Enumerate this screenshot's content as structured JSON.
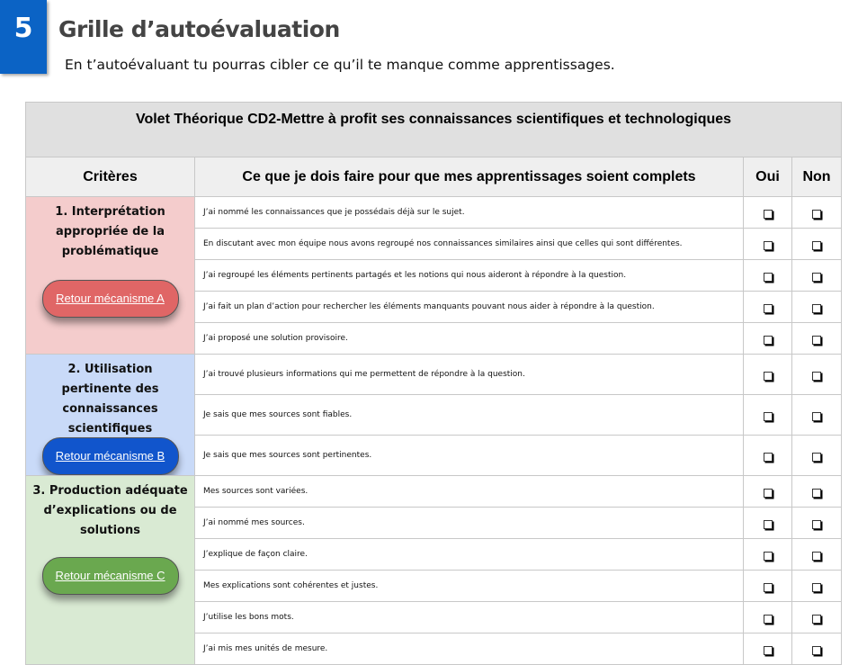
{
  "header": {
    "number": "5",
    "title": "Grille d’autoévaluation",
    "subtitle": "En t’autoévaluant tu pourras cibler ce qu’il te manque comme apprentissages."
  },
  "table": {
    "title": "Volet Théorique CD2-Mettre à profit ses connaissances scientifiques et technologiques",
    "headers": [
      "Critères",
      "Ce que je dois faire pour que mes apprentissages soient complets",
      "Oui",
      "Non"
    ],
    "checkbox_icon": "empty-checkbox",
    "criteria": [
      {
        "label": "1. Interprétation appropriée de la problématique",
        "button": "Retour mécanisme A",
        "color": "#f4cccc",
        "button_color": "#e06666",
        "tasks": [
          "J’ai nommé les connaissances que je possédais déjà sur le sujet.",
          "En discutant  avec mon équipe nous avons regroupé nos connaissances similaires ainsi que celles qui sont différentes.",
          "J’ai regroupé les éléments pertinents partagés et les notions qui nous aideront à répondre à la question.",
          "J’ai fait un plan d’action pour rechercher les éléments manquants pouvant nous aider à répondre à la question.",
          "J’ai proposé une solution provisoire."
        ]
      },
      {
        "label": "2. Utilisation pertinente des connaissances scientifiques",
        "button": "Retour mécanisme B",
        "color": "#c9daf8",
        "button_color": "#1155cc",
        "tasks": [
          "J’ai trouvé plusieurs informations qui me permettent de répondre à la question.",
          "Je sais que mes sources sont fiables.",
          "Je sais que mes sources sont pertinentes."
        ]
      },
      {
        "label": "3. Production adéquate d’explications ou de solutions",
        "button": "Retour mécanisme C",
        "color": "#d9ead3",
        "button_color": "#6aa84f",
        "tasks": [
          "Mes sources sont variées.",
          "J’ai nommé mes sources.",
          "J’explique de façon claire.",
          "Mes explications sont cohérentes et justes.",
          "J’utilise les bons mots.",
          "J’ai mis mes unités de mesure."
        ]
      }
    ]
  }
}
